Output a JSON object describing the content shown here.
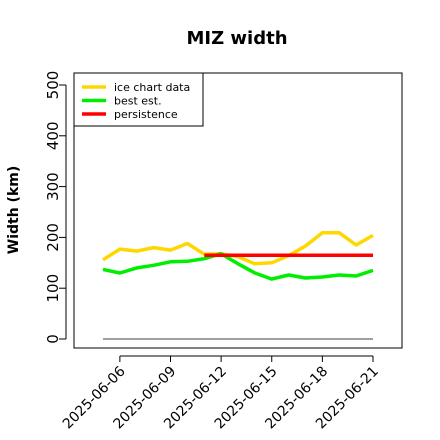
{
  "chart_data": {
    "type": "line",
    "title": "MIZ width",
    "ylabel": "Width (km)",
    "xlabel": "",
    "ylim": [
      0,
      520
    ],
    "yticks": [
      0,
      100,
      200,
      300,
      400,
      500
    ],
    "x": [
      "2025-06-05",
      "2025-06-06",
      "2025-06-07",
      "2025-06-08",
      "2025-06-09",
      "2025-06-10",
      "2025-06-11",
      "2025-06-12",
      "2025-06-13",
      "2025-06-14",
      "2025-06-15",
      "2025-06-16",
      "2025-06-17",
      "2025-06-18",
      "2025-06-19",
      "2025-06-20",
      "2025-06-21"
    ],
    "xtick_labels": [
      "2025-06-06",
      "2025-06-09",
      "2025-06-12",
      "2025-06-15",
      "2025-06-18",
      "2025-06-21"
    ],
    "series": [
      {
        "name": "ice chart data",
        "color": "#FFD700",
        "values": [
          156,
          177,
          173,
          180,
          175,
          188,
          167,
          168,
          162,
          148,
          150,
          164,
          183,
          209,
          209,
          185,
          204
        ]
      },
      {
        "name": "best est.",
        "color": "#00EE00",
        "values": [
          137,
          130,
          140,
          145,
          152,
          153,
          158,
          168,
          148,
          130,
          118,
          126,
          120,
          122,
          126,
          124,
          135
        ]
      },
      {
        "name": "persistence",
        "color": "#FF0000",
        "x": [
          "2025-06-11",
          "2025-06-21"
        ],
        "values": [
          165,
          165
        ]
      }
    ],
    "zero_line": {
      "color": "#808080",
      "x": [
        "2025-06-05",
        "2025-06-21"
      ],
      "values": [
        0,
        0
      ]
    },
    "legend": {
      "position": "top-left",
      "entries": [
        "ice chart data",
        "best est.",
        "persistence"
      ]
    },
    "grid": false
  }
}
